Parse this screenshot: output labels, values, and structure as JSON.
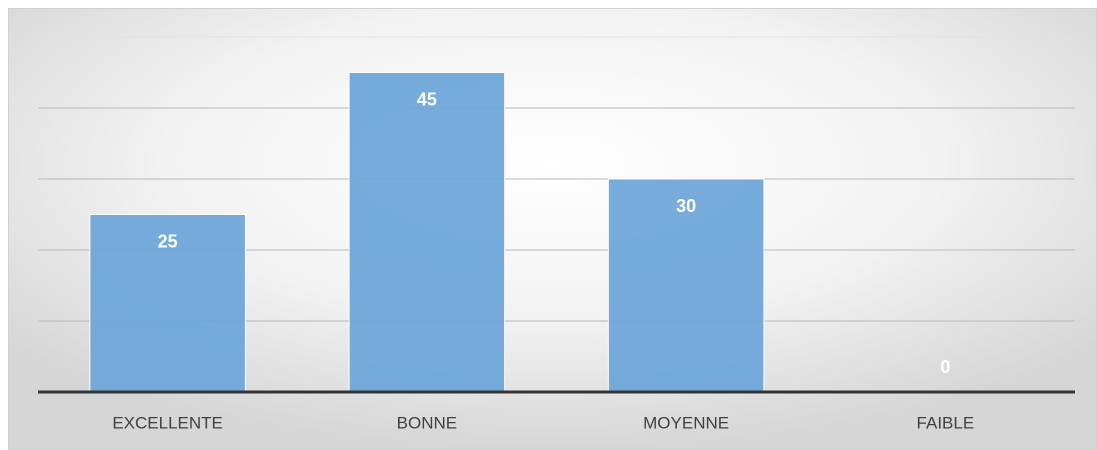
{
  "chart_data": {
    "type": "bar",
    "categories": [
      "EXCELLENTE",
      "BONNE",
      "MOYENNE",
      "FAIBLE"
    ],
    "values": [
      25,
      45,
      30,
      0
    ],
    "color": "#6fa7da",
    "ylim": [
      0,
      50
    ],
    "yticks": [
      0,
      10,
      20,
      30,
      40,
      50
    ],
    "grid": true
  }
}
